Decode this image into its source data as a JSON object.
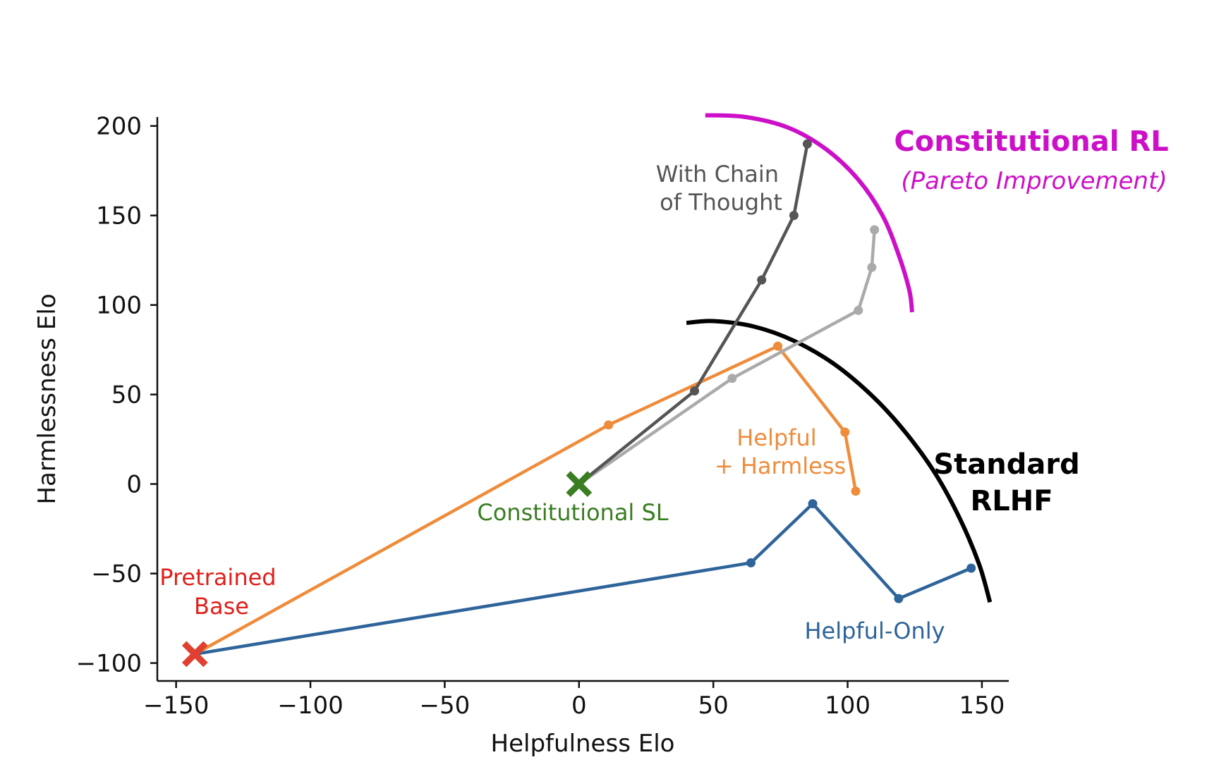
{
  "chart_data": {
    "type": "line",
    "title": "",
    "xlabel": "Helpfulness Elo",
    "ylabel": "Harmlessness Elo",
    "xlim": [
      -157,
      160
    ],
    "ylim": [
      -110,
      205
    ],
    "xticks": [
      -150,
      -100,
      -50,
      0,
      50,
      100,
      150
    ],
    "yticks": [
      -100,
      -50,
      0,
      50,
      100,
      150,
      200
    ],
    "xtick_labels": [
      "−150",
      "−100",
      "−50",
      "0",
      "50",
      "100",
      "150"
    ],
    "ytick_labels": [
      "−100",
      "−50",
      "0",
      "50",
      "100",
      "150",
      "200"
    ],
    "grid": false,
    "series": [
      {
        "name": "Helpful-Only",
        "color": "#2e6499",
        "points": [
          [
            -143,
            -95
          ],
          [
            64,
            -44
          ],
          [
            87,
            -11
          ],
          [
            119,
            -64
          ],
          [
            146,
            -47
          ]
        ]
      },
      {
        "name": "Helpful + Harmless",
        "color": "#ef8c3b",
        "points": [
          [
            -143,
            -95
          ],
          [
            11,
            33
          ],
          [
            74,
            77
          ],
          [
            99,
            29
          ],
          [
            103,
            -4
          ]
        ]
      },
      {
        "name": "",
        "color": "#aaaaaa",
        "points": [
          [
            0,
            0
          ],
          [
            57,
            59
          ],
          [
            104,
            97
          ],
          [
            109,
            121
          ],
          [
            110,
            142
          ]
        ]
      },
      {
        "name": "With Chain of Thought",
        "color": "#555555",
        "points": [
          [
            0,
            0
          ],
          [
            43,
            52
          ],
          [
            68,
            114
          ],
          [
            80,
            150
          ],
          [
            85,
            190
          ]
        ]
      }
    ],
    "markers": [
      {
        "name": "Pretrained Base",
        "x": -143,
        "y": -95,
        "shape": "x",
        "color": "#e0402f"
      },
      {
        "name": "Constitutional SL",
        "x": 0,
        "y": 0,
        "shape": "x",
        "color": "#3a7d22"
      }
    ],
    "frontiers": [
      {
        "name": "Standard RLHF",
        "color": "#000000",
        "points": [
          [
            40,
            90
          ],
          [
            50,
            91
          ],
          [
            65,
            88
          ],
          [
            80,
            80
          ],
          [
            95,
            67
          ],
          [
            110,
            48
          ],
          [
            122,
            28
          ],
          [
            133,
            5
          ],
          [
            142,
            -20
          ],
          [
            149,
            -45
          ],
          [
            153,
            -66
          ]
        ]
      },
      {
        "name": "Constitutional RL",
        "color": "#cc10c8",
        "points": [
          [
            47,
            206
          ],
          [
            62,
            205
          ],
          [
            78,
            199
          ],
          [
            92,
            187
          ],
          [
            104,
            170
          ],
          [
            113,
            150
          ],
          [
            119,
            128
          ],
          [
            123,
            108
          ],
          [
            124,
            96
          ]
        ]
      }
    ],
    "annotations": [
      {
        "id": "pretrained",
        "lines": [
          "Pretrained",
          "Base"
        ],
        "color": "#e0201a"
      },
      {
        "id": "constitutional_sl",
        "lines": [
          "Constitutional SL"
        ],
        "color": "#3a7d22"
      },
      {
        "id": "helpful_harmless",
        "lines": [
          "Helpful",
          "+ Harmless"
        ],
        "color": "#ef8c3b"
      },
      {
        "id": "helpful_only",
        "lines": [
          "Helpful-Only"
        ],
        "color": "#2e6499"
      },
      {
        "id": "cot",
        "lines": [
          "With Chain",
          "of Thought"
        ],
        "color": "#555555"
      },
      {
        "id": "standard_rlhf",
        "lines": [
          "Standard",
          "RLHF"
        ],
        "color": "#000000"
      },
      {
        "id": "constitutional_rl",
        "lines": [
          "Constitutional RL"
        ],
        "color": "#cc10c8"
      },
      {
        "id": "pareto",
        "lines": [
          "(Pareto Improvement)"
        ],
        "color": "#cc10c8"
      }
    ]
  }
}
